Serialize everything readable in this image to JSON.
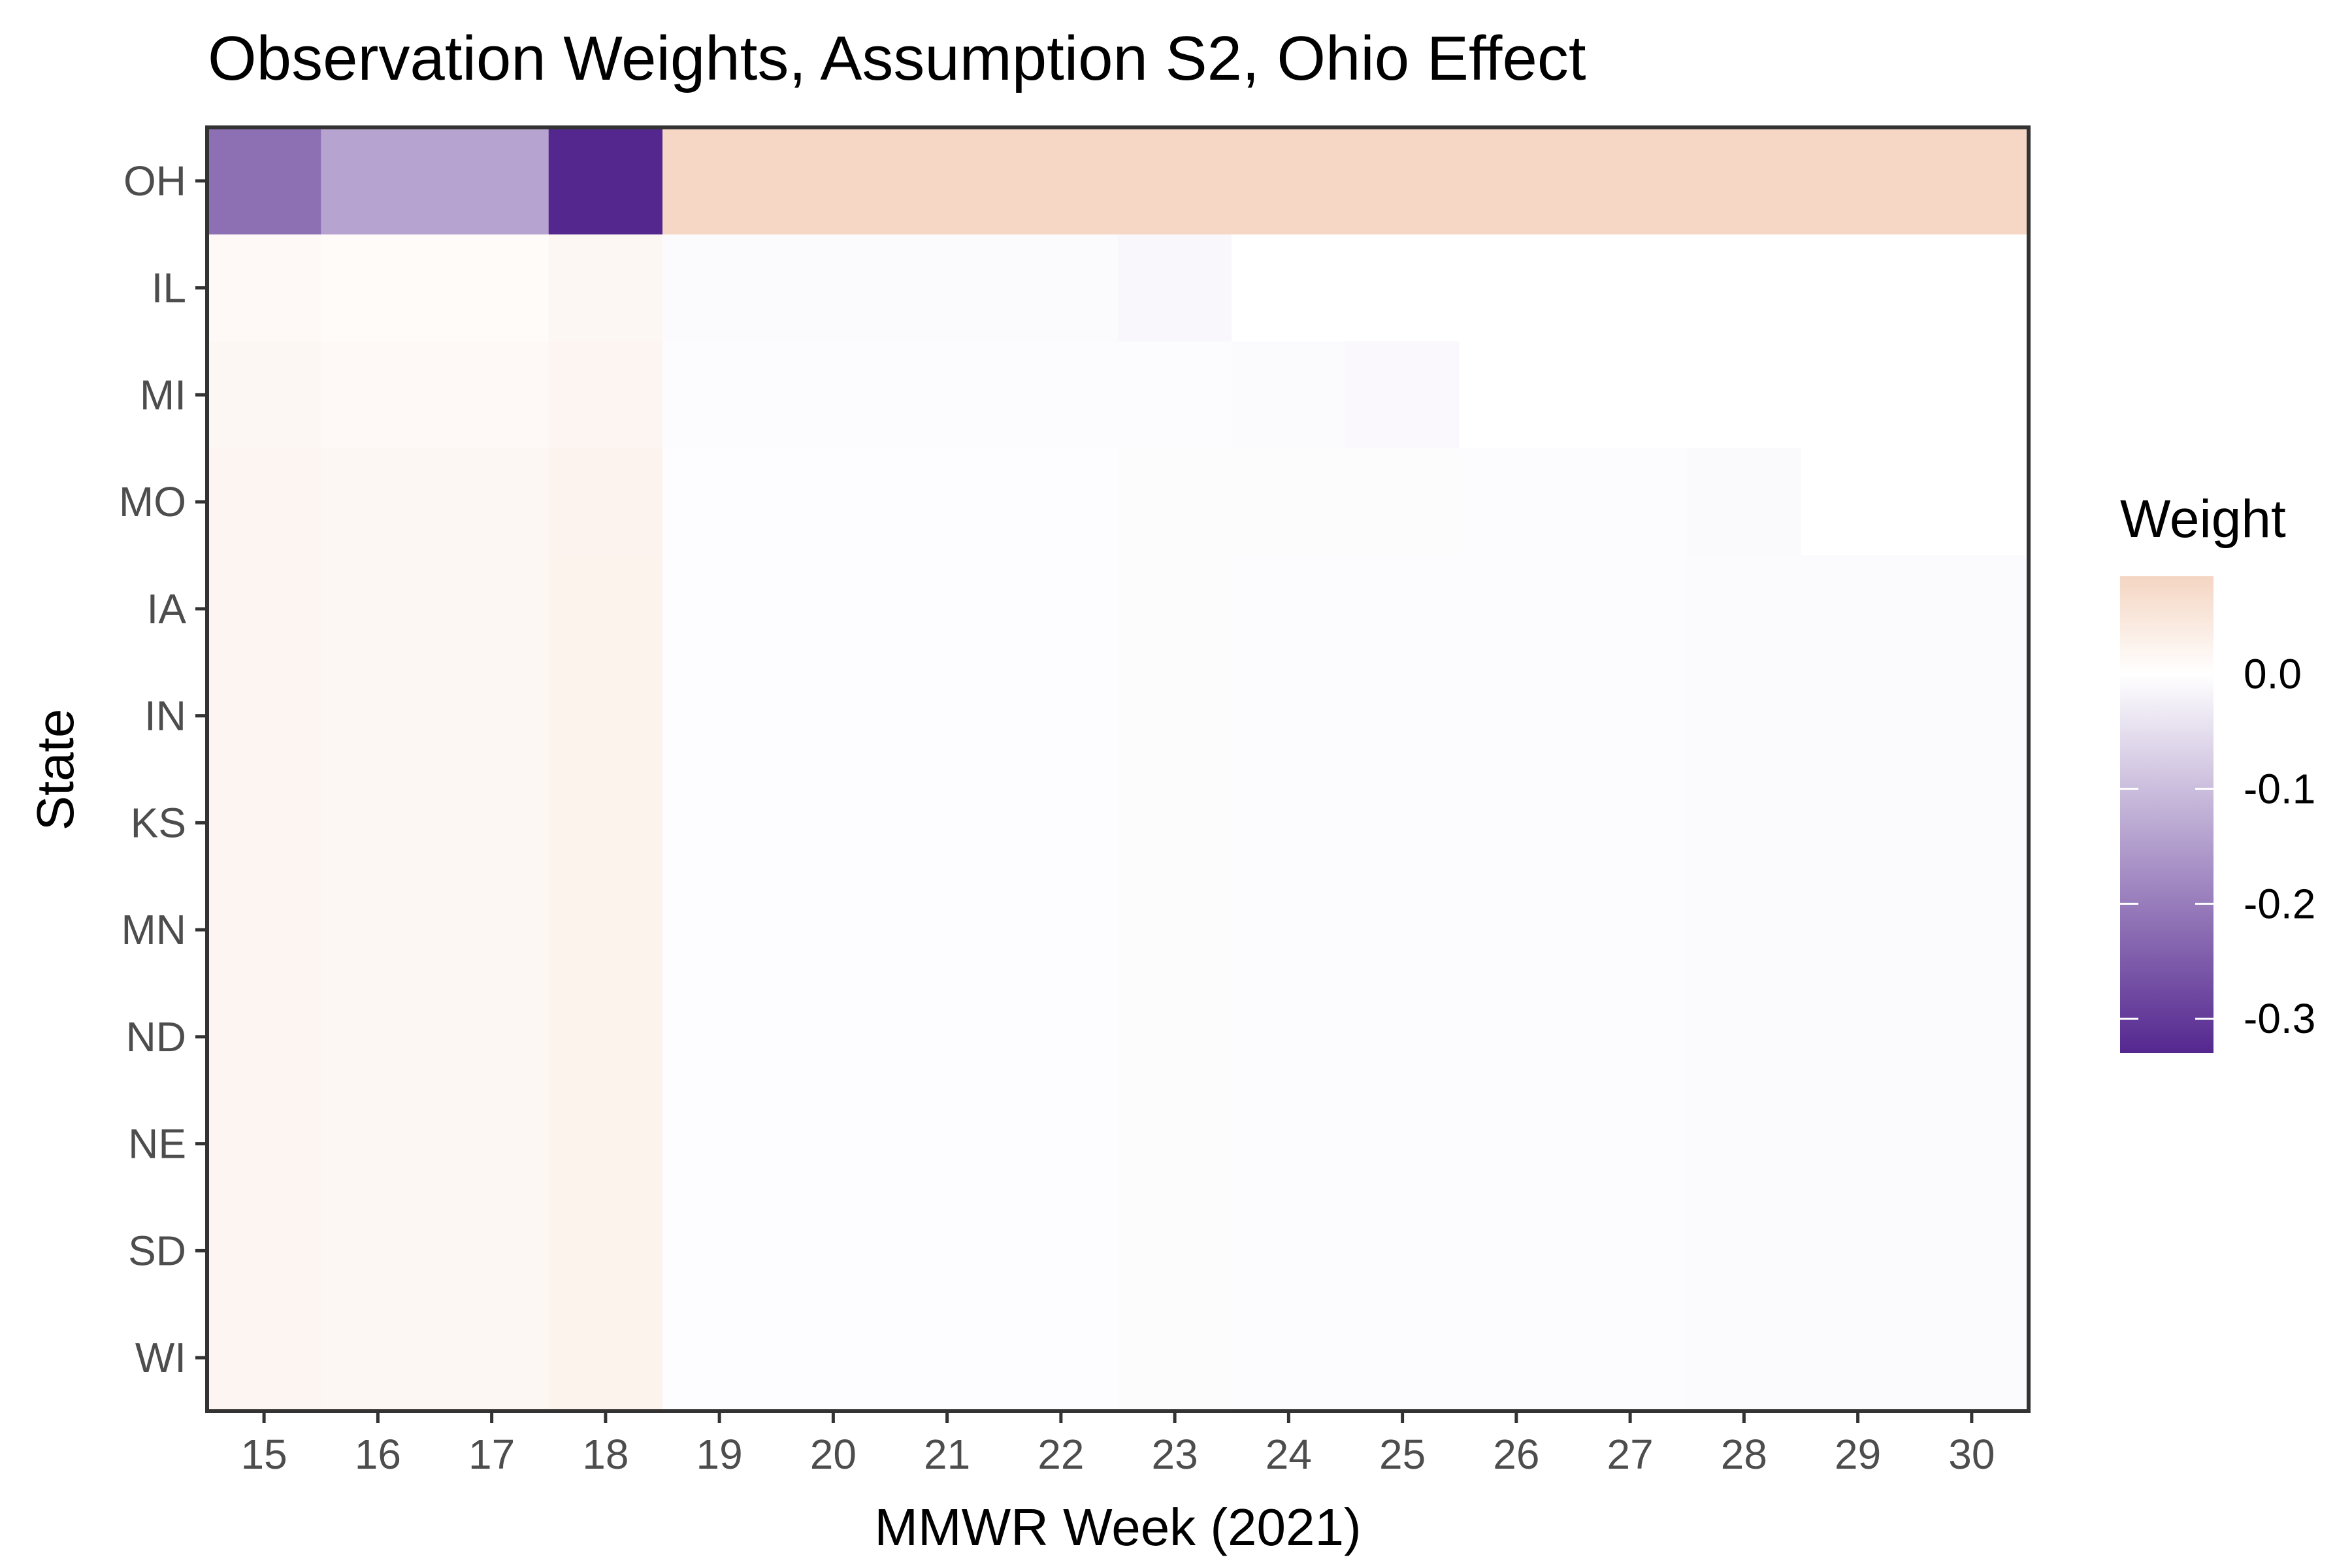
{
  "chart_data": {
    "type": "heatmap",
    "title": "Observation Weights, Assumption S2, Ohio Effect",
    "xlabel": "MMWR Week (2021)",
    "ylabel": "State",
    "x": [
      "15",
      "16",
      "17",
      "18",
      "19",
      "20",
      "21",
      "22",
      "23",
      "24",
      "25",
      "26",
      "27",
      "28",
      "29",
      "30"
    ],
    "y": [
      "OH",
      "IL",
      "MI",
      "MO",
      "IA",
      "IN",
      "KS",
      "MN",
      "ND",
      "NE",
      "SD",
      "WI"
    ],
    "values": [
      [
        -0.22,
        -0.14,
        -0.14,
        -0.33,
        0.08,
        0.08,
        0.08,
        0.08,
        0.08,
        0.08,
        0.08,
        0.08,
        0.08,
        0.08,
        0.08,
        0.08
      ],
      [
        0.012,
        0.008,
        0.008,
        0.016,
        -0.008,
        -0.008,
        -0.008,
        -0.008,
        -0.012,
        null,
        null,
        null,
        null,
        null,
        null,
        null
      ],
      [
        0.016,
        0.012,
        0.012,
        0.02,
        -0.006,
        -0.006,
        -0.006,
        -0.006,
        -0.006,
        -0.007,
        -0.01,
        null,
        null,
        null,
        null,
        null
      ],
      [
        0.02,
        0.016,
        0.016,
        0.024,
        -0.004,
        -0.004,
        -0.004,
        -0.004,
        -0.005,
        -0.005,
        -0.005,
        -0.006,
        -0.006,
        -0.009,
        null,
        null
      ],
      [
        0.02,
        0.017,
        0.017,
        0.025,
        -0.004,
        -0.004,
        -0.004,
        -0.004,
        -0.005,
        -0.006,
        -0.006,
        -0.006,
        -0.006,
        -0.007,
        -0.008,
        -0.008
      ],
      [
        0.02,
        0.017,
        0.017,
        0.025,
        -0.004,
        -0.004,
        -0.004,
        -0.004,
        -0.005,
        -0.006,
        -0.006,
        -0.006,
        -0.006,
        -0.007,
        -0.008,
        -0.008
      ],
      [
        0.02,
        0.017,
        0.017,
        0.025,
        -0.004,
        -0.004,
        -0.004,
        -0.004,
        -0.005,
        -0.006,
        -0.006,
        -0.006,
        -0.006,
        -0.007,
        -0.008,
        -0.008
      ],
      [
        0.02,
        0.017,
        0.017,
        0.025,
        -0.004,
        -0.004,
        -0.004,
        -0.004,
        -0.005,
        -0.006,
        -0.006,
        -0.006,
        -0.006,
        -0.007,
        -0.008,
        -0.008
      ],
      [
        0.02,
        0.017,
        0.017,
        0.025,
        -0.004,
        -0.004,
        -0.004,
        -0.004,
        -0.005,
        -0.006,
        -0.006,
        -0.006,
        -0.006,
        -0.007,
        -0.008,
        -0.008
      ],
      [
        0.02,
        0.017,
        0.017,
        0.025,
        -0.004,
        -0.004,
        -0.004,
        -0.004,
        -0.005,
        -0.006,
        -0.006,
        -0.006,
        -0.006,
        -0.007,
        -0.008,
        -0.008
      ],
      [
        0.02,
        0.017,
        0.017,
        0.025,
        -0.004,
        -0.004,
        -0.004,
        -0.004,
        -0.005,
        -0.006,
        -0.006,
        -0.006,
        -0.006,
        -0.007,
        -0.008,
        -0.008
      ],
      [
        0.02,
        0.017,
        0.017,
        0.025,
        -0.004,
        -0.004,
        -0.004,
        -0.004,
        -0.005,
        -0.006,
        -0.006,
        -0.006,
        -0.006,
        -0.007,
        -0.008,
        -0.008
      ]
    ],
    "legend": {
      "title": "Weight",
      "position": "right",
      "range": [
        -0.33,
        0.085
      ],
      "ticks": [
        0.0,
        -0.1,
        -0.2,
        -0.3
      ],
      "tick_labels": [
        "0.0",
        "-0.1",
        "-0.2",
        "-0.3"
      ],
      "low_color": "#54278f",
      "mid_color": "#ffffff",
      "high_color": "#f5d5c2",
      "na_color": "#ffffff"
    },
    "grid": false
  }
}
